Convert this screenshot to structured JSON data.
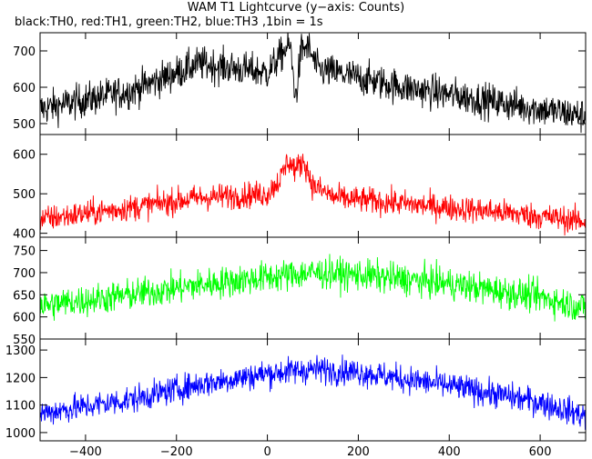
{
  "chart_data": {
    "type": "line",
    "title": "WAM T1 Lightcurve (y−axis: Counts)",
    "subtitle": "black:TH0, red:TH1, green:TH2, blue:TH3 ,1bin = 1s",
    "xlim": [
      -500,
      700
    ],
    "x_ticks": [
      -400,
      -200,
      0,
      200,
      400,
      600
    ],
    "x_tick_labels": [
      "−400",
      "−200",
      "0",
      "200",
      "400",
      "600"
    ],
    "bin_seconds": 1,
    "panels": [
      {
        "series_label": "TH0",
        "color": "#000000",
        "ylim": [
          470,
          750
        ],
        "y_ticks": [
          500,
          600,
          700
        ],
        "profile": [
          [
            -500,
            540
          ],
          [
            -300,
            590
          ],
          [
            -150,
            665
          ],
          [
            0,
            640
          ],
          [
            40,
            705
          ],
          [
            50,
            715
          ],
          [
            62,
            570
          ],
          [
            75,
            705
          ],
          [
            90,
            710
          ],
          [
            110,
            650
          ],
          [
            300,
            600
          ],
          [
            500,
            560
          ],
          [
            700,
            520
          ]
        ],
        "scatter": 40
      },
      {
        "series_label": "TH1",
        "color": "#ff0000",
        "ylim": [
          390,
          650
        ],
        "y_ticks": [
          400,
          500,
          600
        ],
        "profile": [
          [
            -500,
            435
          ],
          [
            -300,
            465
          ],
          [
            -150,
            490
          ],
          [
            0,
            500
          ],
          [
            30,
            540
          ],
          [
            45,
            585
          ],
          [
            62,
            560
          ],
          [
            80,
            585
          ],
          [
            100,
            520
          ],
          [
            150,
            490
          ],
          [
            300,
            475
          ],
          [
            500,
            455
          ],
          [
            700,
            430
          ]
        ],
        "scatter": 28
      },
      {
        "series_label": "TH2",
        "color": "#00ff00",
        "ylim": [
          550,
          780
        ],
        "y_ticks": [
          550,
          600,
          650,
          700,
          750
        ],
        "profile": [
          [
            -500,
            625
          ],
          [
            -300,
            650
          ],
          [
            -150,
            672
          ],
          [
            0,
            690
          ],
          [
            100,
            700
          ],
          [
            200,
            695
          ],
          [
            400,
            675
          ],
          [
            600,
            645
          ],
          [
            700,
            620
          ]
        ],
        "scatter": 30
      },
      {
        "series_label": "TH3",
        "color": "#0000ff",
        "ylim": [
          970,
          1340
        ],
        "y_ticks": [
          1000,
          1100,
          1200,
          1300
        ],
        "profile": [
          [
            -500,
            1070
          ],
          [
            -300,
            1120
          ],
          [
            -150,
            1175
          ],
          [
            0,
            1215
          ],
          [
            100,
            1230
          ],
          [
            200,
            1220
          ],
          [
            400,
            1170
          ],
          [
            600,
            1110
          ],
          [
            700,
            1060
          ]
        ],
        "scatter": 42
      }
    ]
  }
}
